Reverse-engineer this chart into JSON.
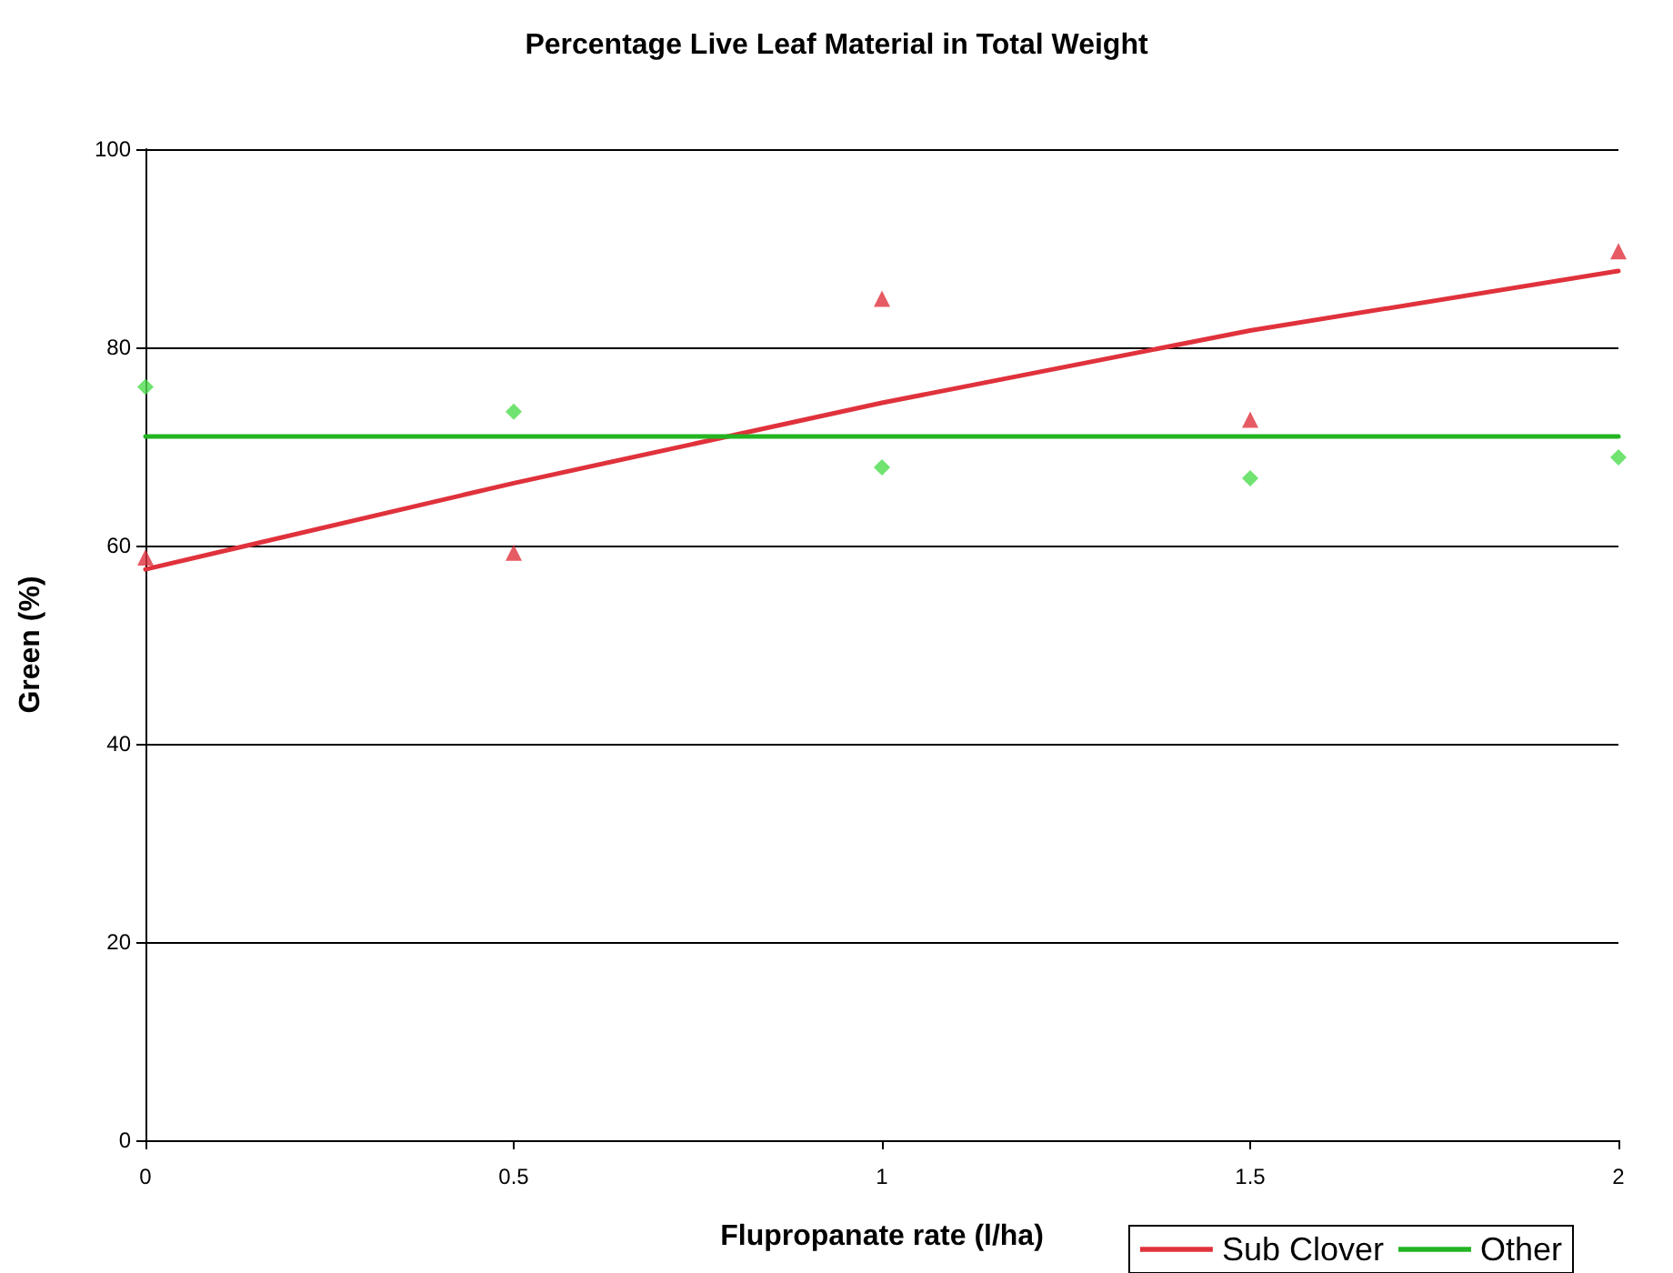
{
  "chart_data": {
    "type": "scatter",
    "title": "Percentage Live Leaf Material in Total Weight",
    "xlabel": "Flupropanate rate (l/ha)",
    "ylabel": "Green (%)",
    "x": [
      0,
      0.5,
      1,
      1.5,
      2
    ],
    "series": [
      {
        "color": "#e0323c",
        "marker": "triangle",
        "values": [
          58.8,
          59.3,
          84.9,
          72.7,
          89.7
        ]
      },
      {
        "color": "#4cdc4c",
        "marker": "diamond",
        "values": [
          76.0,
          73.5,
          67.9,
          66.8,
          68.9
        ]
      },
      {
        "type": "line",
        "name": "Sub Clover",
        "color": "#e0323c",
        "marker": "none",
        "values": [
          57.6,
          66.3,
          74.4,
          81.7,
          87.7
        ]
      },
      {
        "type": "line",
        "name": "Other",
        "color": "#22b422",
        "marker": "none",
        "values": [
          71.0,
          71.0,
          71.0,
          71.0,
          71.0
        ]
      }
    ],
    "xlim": [
      0,
      2
    ],
    "xticks": [
      0,
      0.5,
      1,
      1.5,
      2
    ],
    "ylim": [
      0,
      100
    ],
    "yticks": [
      0,
      20,
      40,
      60,
      80,
      100
    ],
    "grid": "y",
    "legend": "bottom right"
  }
}
